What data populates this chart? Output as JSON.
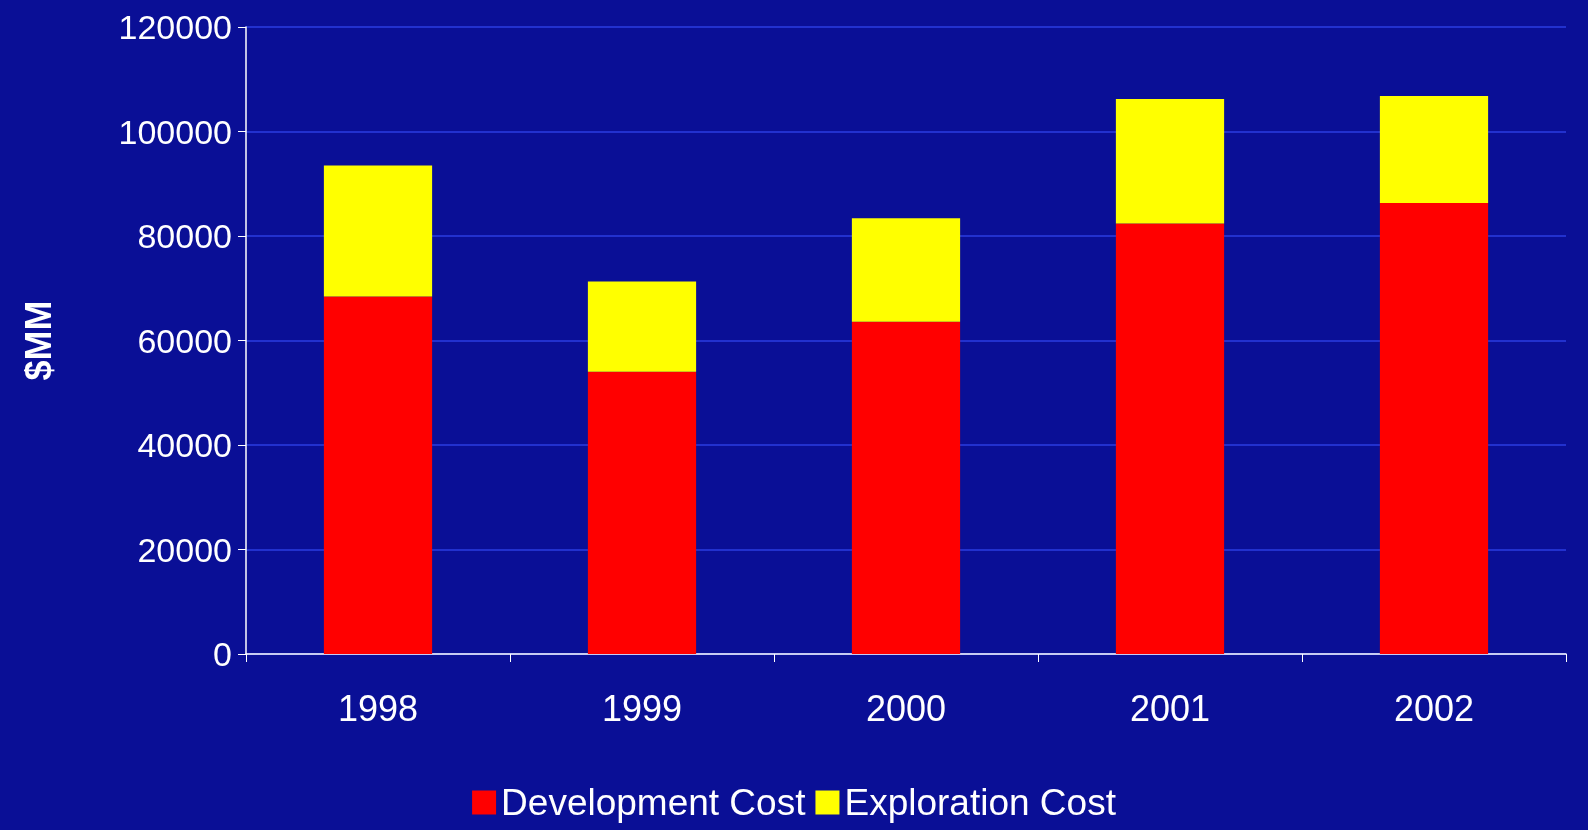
{
  "chart_data": {
    "type": "bar",
    "ylabel": "$MM",
    "categories": [
      "1998",
      "1999",
      "2000",
      "2001",
      "2002"
    ],
    "stacked": true,
    "series": [
      {
        "name": "Development Cost",
        "color": "#ff0000",
        "values": [
          68400,
          54000,
          63600,
          82400,
          86300
        ]
      },
      {
        "name": "Exploration Cost",
        "color": "#ffff00",
        "values": [
          25100,
          17300,
          19800,
          23800,
          20500
        ]
      }
    ],
    "ylim": [
      0,
      120000
    ],
    "yticks": [
      0,
      20000,
      40000,
      60000,
      80000,
      100000,
      120000
    ],
    "grid": "y",
    "legend": "bottom"
  }
}
